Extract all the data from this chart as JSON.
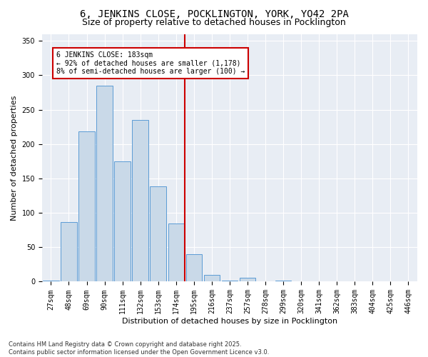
{
  "title": "6, JENKINS CLOSE, POCKLINGTON, YORK, YO42 2PA",
  "subtitle": "Size of property relative to detached houses in Pocklington",
  "xlabel": "Distribution of detached houses by size in Pocklington",
  "ylabel": "Number of detached properties",
  "categories": [
    "27sqm",
    "48sqm",
    "69sqm",
    "90sqm",
    "111sqm",
    "132sqm",
    "153sqm",
    "174sqm",
    "195sqm",
    "216sqm",
    "237sqm",
    "257sqm",
    "278sqm",
    "299sqm",
    "320sqm",
    "341sqm",
    "362sqm",
    "383sqm",
    "404sqm",
    "425sqm",
    "446sqm"
  ],
  "values": [
    2,
    87,
    218,
    285,
    175,
    235,
    138,
    85,
    40,
    10,
    2,
    6,
    1,
    2,
    0,
    1,
    0,
    0,
    0,
    0,
    1
  ],
  "bar_color": "#c9d9e8",
  "bar_edge_color": "#5b9bd5",
  "vline_color": "#cc0000",
  "annotation_title": "6 JENKINS CLOSE: 183sqm",
  "annotation_line1": "← 92% of detached houses are smaller (1,178)",
  "annotation_line2": "8% of semi-detached houses are larger (100) →",
  "annotation_box_color": "#cc0000",
  "ylim": [
    0,
    360
  ],
  "yticks": [
    0,
    50,
    100,
    150,
    200,
    250,
    300,
    350
  ],
  "background_color": "#e8edf4",
  "footer": "Contains HM Land Registry data © Crown copyright and database right 2025.\nContains public sector information licensed under the Open Government Licence v3.0.",
  "title_fontsize": 10,
  "subtitle_fontsize": 9,
  "axis_label_fontsize": 8,
  "tick_fontsize": 7
}
